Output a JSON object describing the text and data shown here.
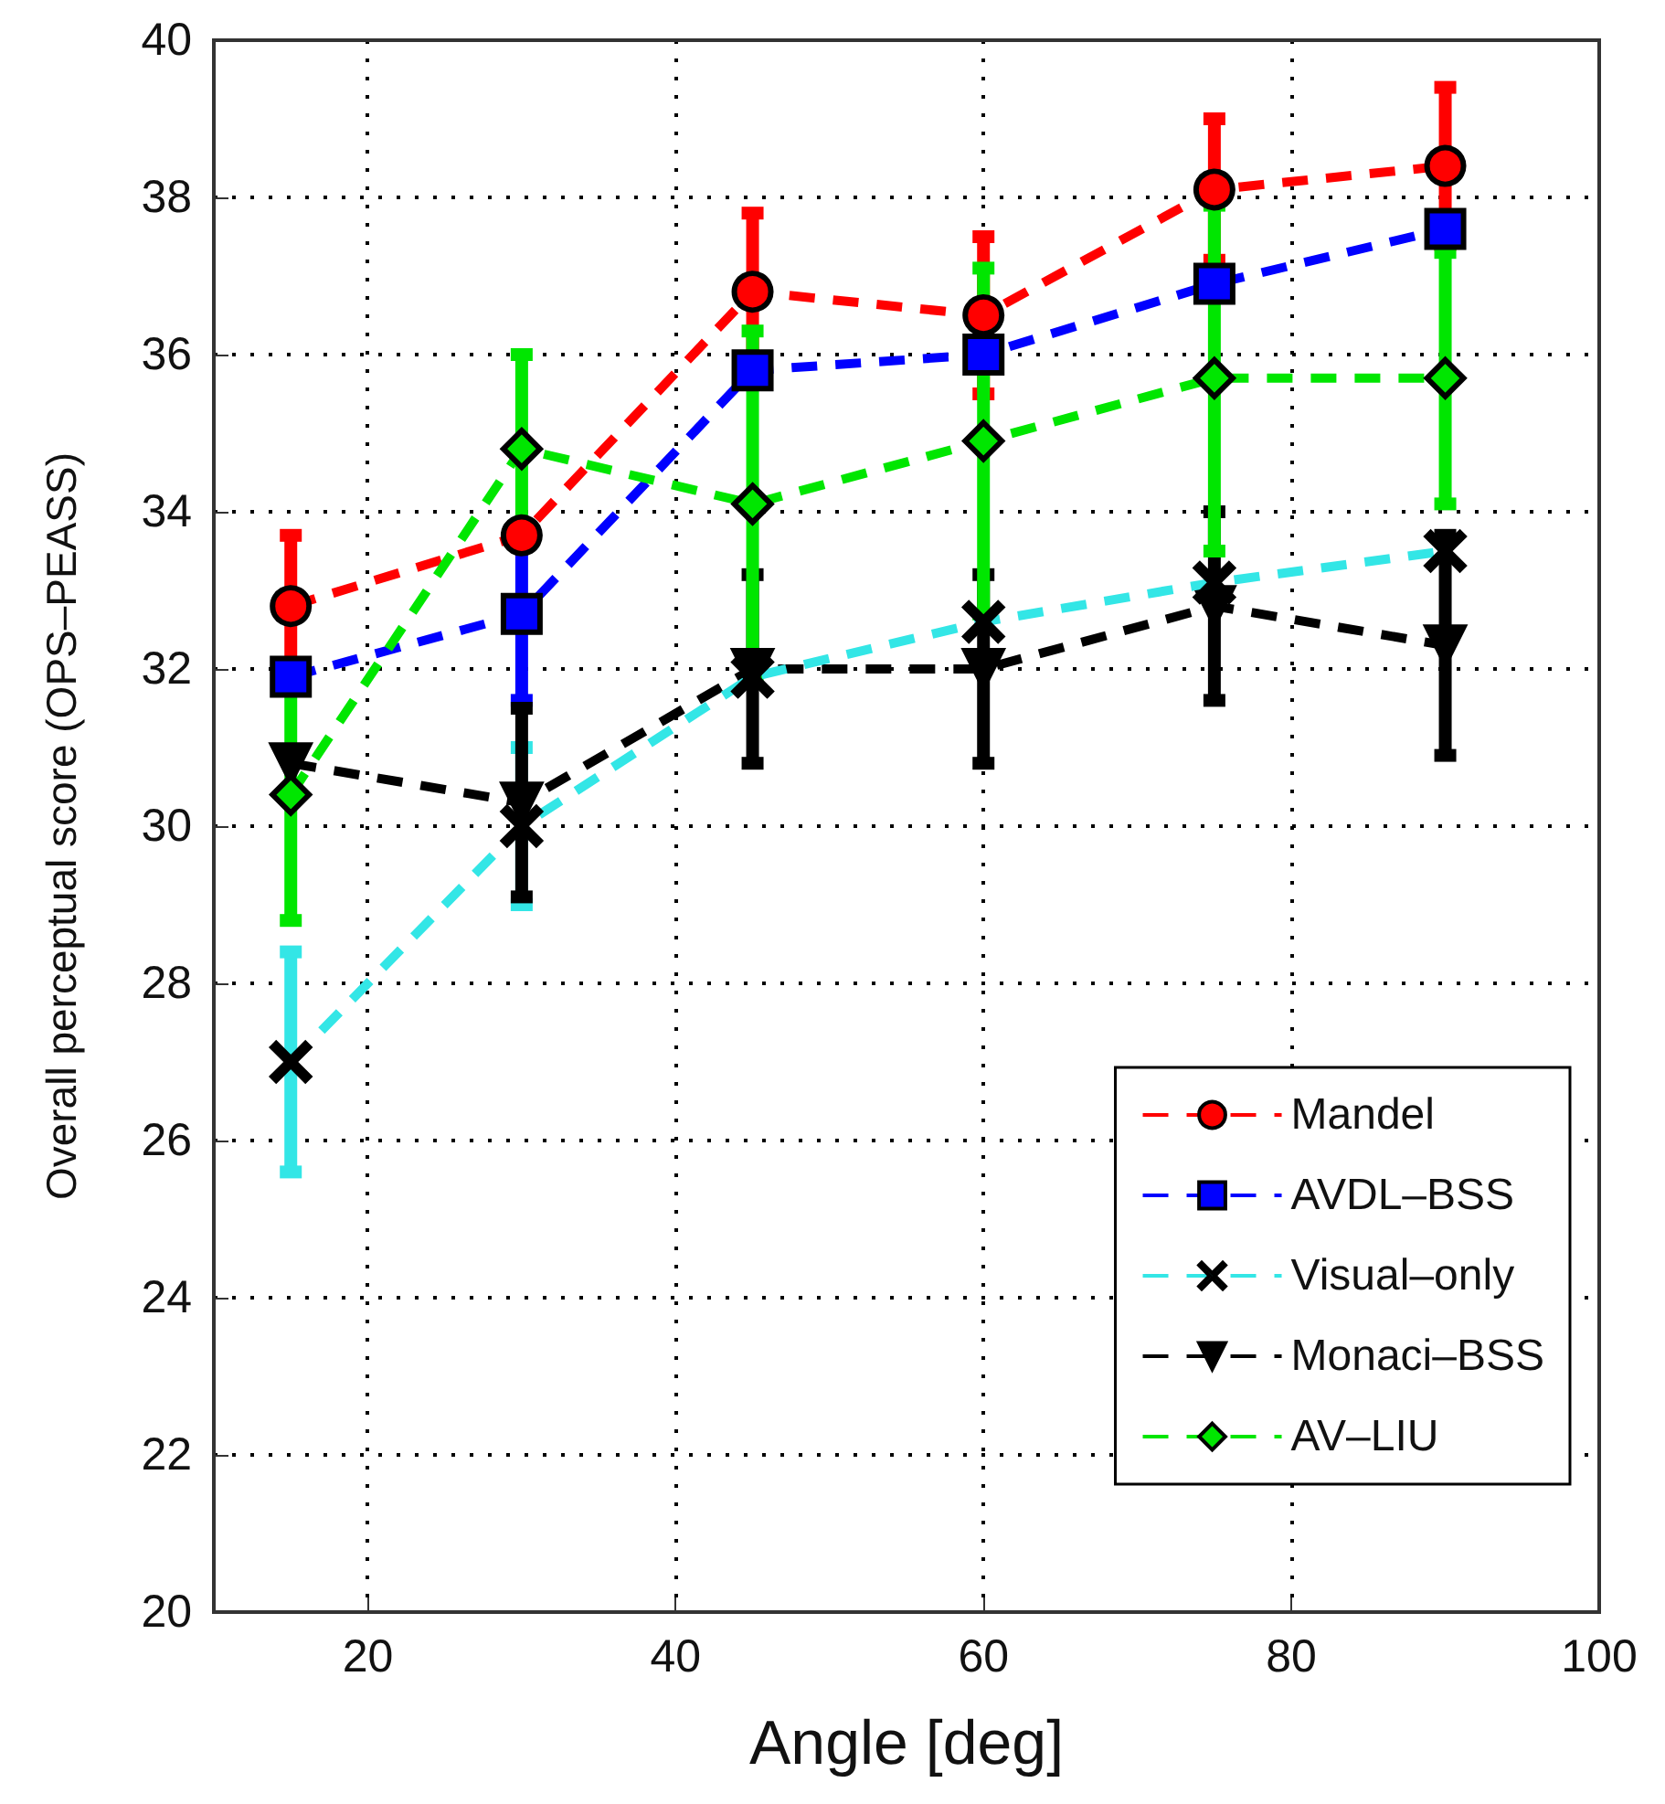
{
  "chart_data": {
    "type": "line",
    "xlabel": "Angle [deg]",
    "ylabel": "Overall perceptual score (OPS–PEASS)",
    "x": [
      15,
      30,
      45,
      60,
      75,
      90
    ],
    "xlim": [
      10,
      100
    ],
    "xticks": [
      20,
      40,
      60,
      80,
      100
    ],
    "ylim": [
      20,
      40
    ],
    "yticks": [
      20,
      22,
      24,
      26,
      28,
      30,
      32,
      34,
      36,
      38,
      40
    ],
    "grid": true,
    "legend": "bottom right",
    "line_style": "dashed",
    "series": [
      {
        "name": "Mandel",
        "color": "#ff0000",
        "marker": "circle",
        "values": [
          32.8,
          33.7,
          36.8,
          36.5,
          38.1,
          38.4
        ],
        "errors": [
          0.9,
          null,
          1.0,
          1.0,
          0.9,
          1.0
        ]
      },
      {
        "name": "AVDL–BSS",
        "color": "#0000ff",
        "marker": "square",
        "values": [
          31.9,
          32.7,
          35.8,
          36.0,
          36.9,
          37.6
        ],
        "errors": [
          null,
          1.1,
          null,
          null,
          null,
          null
        ]
      },
      {
        "name": "Visual–only",
        "color": "#33e6e6",
        "marker": "cross",
        "values": [
          27.0,
          30.0,
          31.9,
          32.6,
          33.1,
          33.5
        ],
        "errors": [
          1.4,
          1.0,
          null,
          null,
          null,
          null
        ]
      },
      {
        "name": "Monaci–BSS",
        "color": "#000000",
        "marker": "triangle",
        "values": [
          30.8,
          30.3,
          32.0,
          32.0,
          32.8,
          32.3
        ],
        "errors": [
          null,
          1.2,
          1.2,
          1.2,
          1.2,
          1.4
        ]
      },
      {
        "name": "AV–LIU",
        "color": "#00e600",
        "marker": "diamond",
        "values": [
          30.4,
          34.8,
          34.1,
          34.9,
          35.7,
          35.7
        ],
        "errors": [
          1.6,
          1.2,
          2.2,
          2.2,
          2.2,
          1.6
        ]
      }
    ]
  }
}
